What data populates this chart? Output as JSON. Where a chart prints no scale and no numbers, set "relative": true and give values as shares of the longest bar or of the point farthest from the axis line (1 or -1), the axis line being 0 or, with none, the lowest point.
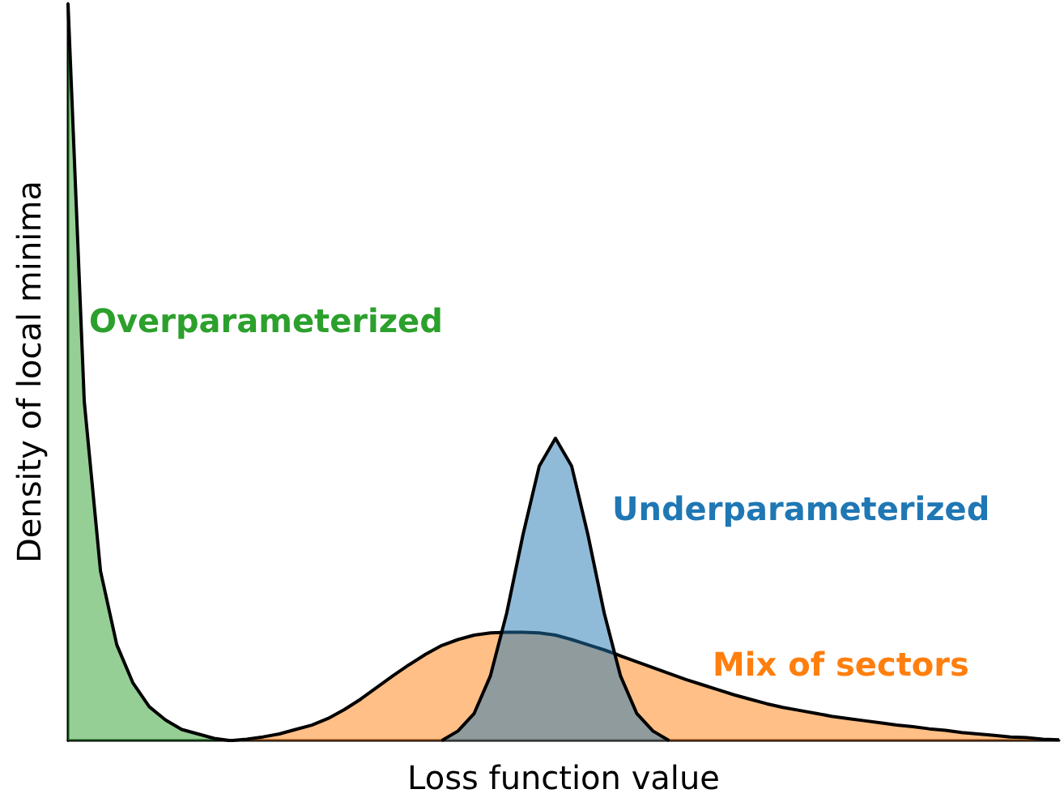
{
  "chart_data": {
    "type": "area",
    "relative": true,
    "xlabel": "Loss function value",
    "ylabel": "Density of local minima",
    "grid": false,
    "marker": "none",
    "categories": [
      null,
      null,
      null,
      null,
      null,
      null,
      null,
      null,
      null,
      null,
      null,
      null,
      null,
      null,
      null,
      null,
      null,
      null,
      null,
      null,
      null,
      null,
      null,
      null,
      null,
      null,
      null,
      null,
      null,
      null,
      null,
      null,
      null,
      null,
      null,
      null,
      null,
      null,
      null,
      null,
      null,
      null,
      null,
      null,
      null,
      null,
      null,
      null,
      null,
      null,
      null,
      null,
      null,
      null,
      null,
      null,
      null,
      null,
      null,
      null,
      null,
      null
    ],
    "series": [
      {
        "name": "Overparameterized",
        "color": "#2ca02c",
        "values": [
          1.0,
          0.46,
          0.23,
          0.13,
          0.078,
          0.046,
          0.028,
          0.015,
          0.009,
          0.003,
          0,
          null,
          null,
          null,
          null,
          null,
          null,
          null,
          null,
          null,
          null,
          null,
          null,
          null,
          null,
          null,
          null,
          null,
          null,
          null,
          null,
          null,
          null,
          null,
          null,
          null,
          null,
          null,
          null,
          null,
          null,
          null,
          null,
          null,
          null,
          null,
          null,
          null,
          null,
          null,
          null,
          null,
          null,
          null,
          null,
          null,
          null,
          null,
          null,
          null,
          null,
          null
        ]
      },
      {
        "name": "Mix of sectors",
        "color": "#ff7f0e",
        "values": [
          null,
          null,
          null,
          null,
          null,
          null,
          null,
          null,
          null,
          null,
          0,
          0.002,
          0.005,
          0.009,
          0.015,
          0.021,
          0.03,
          0.042,
          0.056,
          0.072,
          0.088,
          0.103,
          0.117,
          0.129,
          0.137,
          0.143,
          0.146,
          0.147,
          0.147,
          0.146,
          0.143,
          0.137,
          0.13,
          0.123,
          0.115,
          0.107,
          0.099,
          0.091,
          0.083,
          0.076,
          0.069,
          0.062,
          0.056,
          0.05,
          0.045,
          0.041,
          0.037,
          0.033,
          0.03,
          0.027,
          0.024,
          0.021,
          0.019,
          0.016,
          0.014,
          0.011,
          0.009,
          0.007,
          0.005,
          0.004,
          0.002,
          0.001
        ]
      },
      {
        "name": "Underparameterized",
        "color": "#1f77b4",
        "values": [
          null,
          null,
          null,
          null,
          null,
          null,
          null,
          null,
          null,
          null,
          null,
          null,
          null,
          null,
          null,
          null,
          null,
          null,
          null,
          null,
          null,
          null,
          null,
          0,
          0.013,
          0.037,
          0.088,
          0.173,
          0.279,
          0.372,
          0.41,
          0.372,
          0.279,
          0.173,
          0.088,
          0.037,
          0.013,
          0,
          null,
          null,
          null,
          null,
          null,
          null,
          null,
          null,
          null,
          null,
          null,
          null,
          null,
          null,
          null,
          null,
          null,
          null,
          null,
          null,
          null,
          null,
          null,
          null
        ]
      }
    ]
  }
}
